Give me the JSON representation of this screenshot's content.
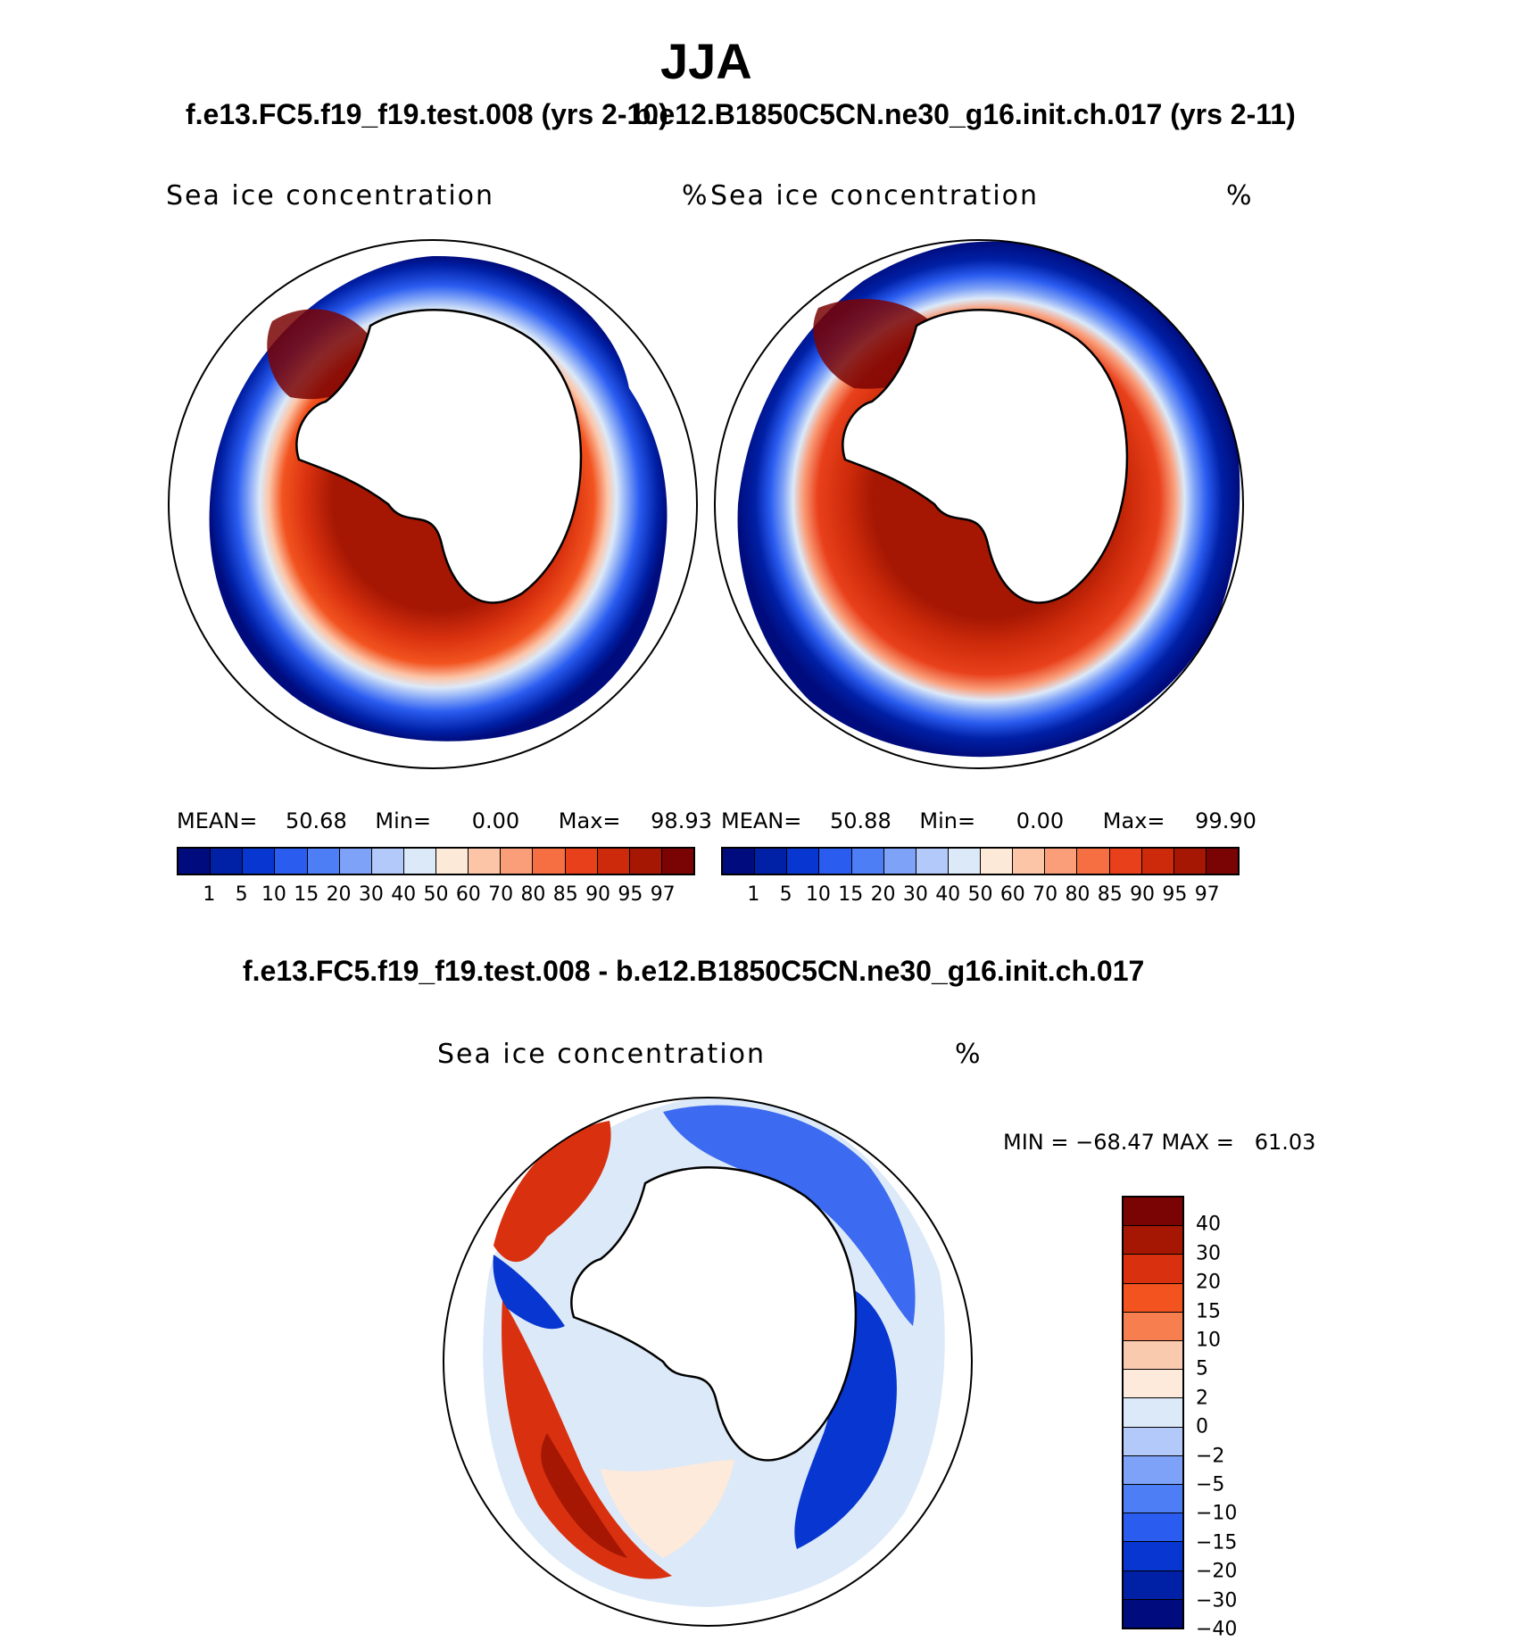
{
  "title": "JJA",
  "panel_left": {
    "subtitle": "f.e13.FC5.f19_f19.test.008 (yrs 2-10)",
    "label": "Sea ice concentration",
    "units": "%",
    "stats": {
      "mean_label": "MEAN=",
      "mean": "50.68",
      "min_label": "Min=",
      "min": "0.00",
      "max_label": "Max=",
      "max": "98.93"
    }
  },
  "panel_right": {
    "subtitle": "b.e12.B1850C5CN.ne30_g16.init.ch.017 (yrs 2-11)",
    "label": "Sea ice concentration",
    "units": "%",
    "stats": {
      "mean_label": "MEAN=",
      "mean": "50.88",
      "min_label": "Min=",
      "min": "0.00",
      "max_label": "Max=",
      "max": "99.90"
    }
  },
  "conc_colorbar": {
    "colors": [
      "#000c7d",
      "#0020a6",
      "#0736d1",
      "#2a5cf0",
      "#4d7ef5",
      "#7ea2f7",
      "#b3c9f9",
      "#dce9f8",
      "#fde9d8",
      "#fcc5a8",
      "#fa9e7a",
      "#f56f43",
      "#e8401b",
      "#cc2a0a",
      "#a51703",
      "#7a0403"
    ],
    "labels": [
      "1",
      "5",
      "10",
      "15",
      "20",
      "30",
      "40",
      "50",
      "60",
      "70",
      "80",
      "85",
      "90",
      "95",
      "97"
    ]
  },
  "diff_panel": {
    "subtitle": "f.e13.FC5.f19_f19.test.008 - b.e12.B1850C5CN.ne30_g16.init.ch.017",
    "label": "Sea ice concentration",
    "units": "%",
    "minmax": "MIN = −68.47 MAX =   61.03"
  },
  "diff_colorbar": {
    "colors": [
      "#7a0403",
      "#a51703",
      "#d9310f",
      "#f2531f",
      "#f77e4e",
      "#facaaf",
      "#fdeadb",
      "#dce9f8",
      "#b3c9f9",
      "#7ea2f7",
      "#4d7ef5",
      "#2a5cf0",
      "#0736d1",
      "#0020a6",
      "#000c7d"
    ],
    "labels": [
      "40",
      "30",
      "20",
      "15",
      "10",
      "5",
      "2",
      "0",
      "−2",
      "−5",
      "−10",
      "−15",
      "−20",
      "−30",
      "−40"
    ]
  }
}
